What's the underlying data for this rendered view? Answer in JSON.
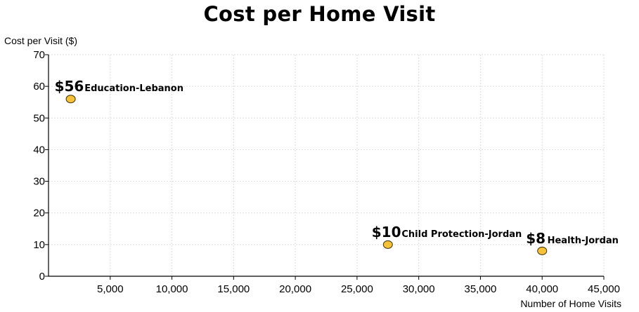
{
  "chart_data": {
    "type": "scatter",
    "title": "Cost per Home Visit",
    "ylabel": "Cost per Visit ($)",
    "xlabel": "Number of Home Visits",
    "xlim": [
      0,
      45000
    ],
    "ylim": [
      0,
      70
    ],
    "x_ticks": [
      5000,
      10000,
      15000,
      20000,
      25000,
      30000,
      35000,
      40000,
      45000
    ],
    "x_tick_labels": [
      "5,000",
      "10,000",
      "15,000",
      "20,000",
      "25,000",
      "30,000",
      "35,000",
      "40,000",
      "45,000"
    ],
    "y_ticks": [
      0,
      10,
      20,
      30,
      40,
      50,
      60,
      70
    ],
    "y_tick_labels": [
      "0",
      "10",
      "20",
      "30",
      "40",
      "50",
      "60",
      "70"
    ],
    "grid": true,
    "points": [
      {
        "x": 1800,
        "y": 56,
        "value_label": "$56",
        "name": "Education-Lebanon"
      },
      {
        "x": 27500,
        "y": 10,
        "value_label": "$10",
        "name": "Child Protection-Jordan"
      },
      {
        "x": 40000,
        "y": 8,
        "value_label": "$8",
        "name": "Health-Jordan"
      }
    ],
    "colors": {
      "marker_fill": "#f7c23a",
      "marker_stroke": "#3a2e00",
      "grid": "#dcdcdc",
      "axis": "#000000"
    }
  }
}
